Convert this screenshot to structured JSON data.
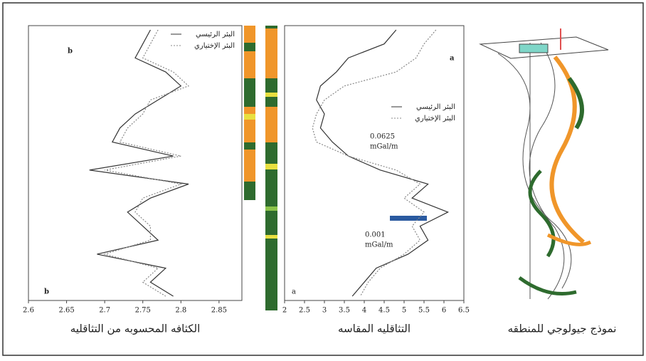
{
  "chart_data": [
    {
      "type": "line",
      "orientation": "vertical",
      "title": "الكثافه المحسوبه من التثاقليه",
      "categories": [
        null,
        null,
        null,
        null,
        null,
        null,
        null,
        null,
        null,
        null,
        null,
        null,
        null,
        null,
        null,
        null,
        null,
        null,
        null,
        null
      ],
      "series": [
        {
          "name": "البئر الرئيسي",
          "color": "#333333",
          "dash": false,
          "values": [
            2.76,
            2.75,
            2.74,
            2.78,
            2.8,
            2.77,
            2.74,
            2.72,
            2.71,
            2.79,
            2.68,
            2.81,
            2.76,
            2.73,
            2.75,
            2.77,
            2.69,
            2.78,
            2.76,
            2.79
          ]
        },
        {
          "name": "البئر الإختياري",
          "color": "#888888",
          "dash": true,
          "values": [
            2.77,
            2.76,
            2.75,
            2.79,
            2.81,
            2.76,
            2.75,
            2.73,
            2.72,
            2.8,
            2.7,
            2.8,
            2.75,
            2.74,
            2.76,
            2.76,
            2.7,
            2.77,
            2.75,
            2.78
          ]
        }
      ],
      "xlim": [
        2.6,
        2.88
      ],
      "xticks": [
        2.6,
        2.65,
        2.7,
        2.75,
        2.8,
        2.85
      ],
      "annotations": [
        "b",
        "b"
      ]
    },
    {
      "type": "line",
      "orientation": "vertical",
      "title": "التثاقليه المقاسه",
      "categories": [
        null,
        null,
        null,
        null,
        null,
        null,
        null,
        null,
        null,
        null,
        null,
        null,
        null,
        null,
        null,
        null,
        null,
        null,
        null,
        null
      ],
      "series": [
        {
          "name": "البئر الرئيسي",
          "color": "#333333",
          "dash": false,
          "values": [
            4.8,
            4.5,
            3.6,
            3.3,
            2.9,
            2.8,
            3.0,
            2.9,
            3.2,
            3.6,
            4.4,
            5.6,
            5.2,
            6.1,
            5.4,
            5.6,
            5.1,
            4.3,
            4.0,
            3.7
          ]
        },
        {
          "name": "البئر الإختياري",
          "color": "#888888",
          "dash": true,
          "values": [
            5.8,
            5.5,
            5.3,
            4.8,
            3.5,
            3.0,
            2.8,
            2.7,
            2.8,
            3.6,
            4.8,
            5.4,
            5.0,
            5.5,
            5.2,
            5.4,
            5.0,
            4.4,
            4.1,
            3.9
          ]
        }
      ],
      "xlim": [
        2,
        6.5
      ],
      "xticks": [
        2,
        2.5,
        3,
        3.5,
        4,
        4.5,
        5,
        5.5,
        6,
        6.5
      ],
      "annotations": [
        "a",
        "a",
        "0.0625",
        "mGal/m",
        "0.001",
        "mGal/m"
      ]
    }
  ],
  "model_caption": "نموذج جيولوجي للمنطقه"
}
